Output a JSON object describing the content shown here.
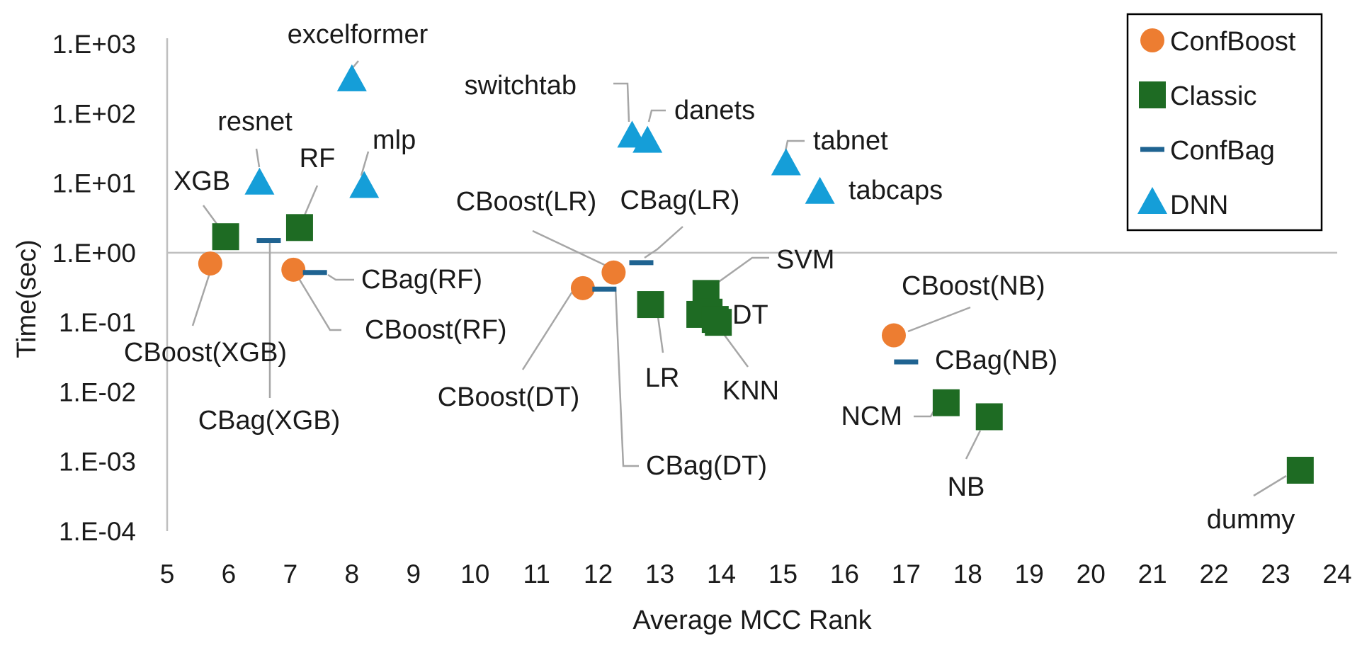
{
  "chart_data": {
    "type": "scatter",
    "xlabel": "Average MCC Rank",
    "ylabel": "Time(sec)",
    "xlim": [
      5,
      24
    ],
    "ylim": [
      0.0001,
      1000
    ],
    "y_scale": "log",
    "grid": false,
    "legend_position": "top-right",
    "x_ticks": [
      "5",
      "6",
      "7",
      "8",
      "9",
      "10",
      "11",
      "12",
      "13",
      "14",
      "15",
      "16",
      "17",
      "18",
      "19",
      "20",
      "21",
      "22",
      "23",
      "24"
    ],
    "y_ticks": [
      {
        "value": 1000,
        "label": "1.E+03"
      },
      {
        "value": 100,
        "label": "1.E+02"
      },
      {
        "value": 10,
        "label": "1.E+01"
      },
      {
        "value": 1,
        "label": "1.E+00"
      },
      {
        "value": 0.1,
        "label": "1.E-01"
      },
      {
        "value": 0.01,
        "label": "1.E-02"
      },
      {
        "value": 0.001,
        "label": "1.E-03"
      },
      {
        "value": 0.0001,
        "label": "1.E-04"
      }
    ],
    "series": [
      {
        "name": "ConfBoost",
        "marker": "circle",
        "color": "#ed7d31",
        "points": [
          {
            "label": "CBoost(XGB)",
            "x": 5.7,
            "y": 0.7
          },
          {
            "label": "CBoost(RF)",
            "x": 7.05,
            "y": 0.57
          },
          {
            "label": "CBoost(DT)",
            "x": 11.75,
            "y": 0.31
          },
          {
            "label": "CBoost(LR)",
            "x": 12.25,
            "y": 0.52
          },
          {
            "label": "CBoost(NB)",
            "x": 16.8,
            "y": 0.065
          }
        ]
      },
      {
        "name": "Classic",
        "marker": "square",
        "color": "#1e6b23",
        "points": [
          {
            "label": "XGB",
            "x": 5.95,
            "y": 1.7
          },
          {
            "label": "RF",
            "x": 7.15,
            "y": 2.3
          },
          {
            "label": "LR",
            "x": 12.85,
            "y": 0.18
          },
          {
            "label": "SVM",
            "x": 13.75,
            "y": 0.26
          },
          {
            "label": "",
            "x": 13.65,
            "y": 0.13
          },
          {
            "label": "",
            "x": 13.8,
            "y": 0.14
          },
          {
            "label": "DT",
            "x": 13.9,
            "y": 0.11
          },
          {
            "label": "KNN",
            "x": 13.95,
            "y": 0.1
          },
          {
            "label": "NCM",
            "x": 17.65,
            "y": 0.007
          },
          {
            "label": "NB",
            "x": 18.35,
            "y": 0.0044
          },
          {
            "label": "dummy",
            "x": 23.4,
            "y": 0.00075
          }
        ]
      },
      {
        "name": "ConfBag",
        "marker": "dash",
        "color": "#1f6391",
        "points": [
          {
            "label": "CBag(XGB)",
            "x": 6.65,
            "y": 1.5
          },
          {
            "label": "CBag(RF)",
            "x": 7.4,
            "y": 0.52
          },
          {
            "label": "CBag(LR)",
            "x": 12.7,
            "y": 0.72
          },
          {
            "label": "CBag(DT)",
            "x": 12.1,
            "y": 0.3
          },
          {
            "label": "CBag(NB)",
            "x": 17.0,
            "y": 0.027
          }
        ]
      },
      {
        "name": "DNN",
        "marker": "triangle",
        "color": "#159ed8",
        "points": [
          {
            "label": "excelformer",
            "x": 8.0,
            "y": 290
          },
          {
            "label": "resnet",
            "x": 6.5,
            "y": 9.5
          },
          {
            "label": "mlp",
            "x": 8.2,
            "y": 8.5
          },
          {
            "label": "switchtab",
            "x": 12.55,
            "y": 45
          },
          {
            "label": "danets",
            "x": 12.8,
            "y": 38
          },
          {
            "label": "tabnet",
            "x": 15.05,
            "y": 18
          },
          {
            "label": "tabcaps",
            "x": 15.6,
            "y": 7
          }
        ]
      }
    ]
  }
}
